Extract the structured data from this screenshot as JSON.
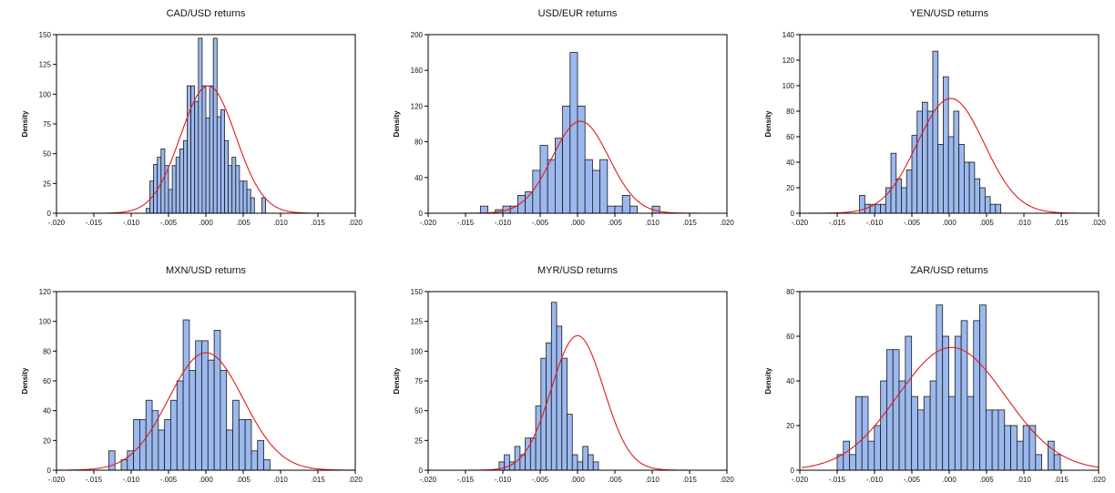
{
  "chart_data": [
    {
      "type": "bar",
      "title": "CAD/USD returns",
      "ylabel": "Density",
      "xlim": [
        -0.02,
        0.02
      ],
      "ylim": [
        0,
        150
      ],
      "xticks": [
        "-.020",
        "-.015",
        "-.010",
        "-.005",
        ".000",
        ".005",
        ".010",
        ".015",
        ".020"
      ],
      "yticks": [
        "0",
        "25",
        "50",
        "75",
        "100",
        "125",
        "150"
      ],
      "bin_width": 0.0005,
      "bin_start": -0.008,
      "values": [
        4,
        27,
        41,
        47,
        54,
        40,
        20,
        40,
        47,
        54,
        61,
        107,
        107,
        94,
        147,
        107,
        80,
        107,
        147,
        81,
        87,
        61,
        40,
        47,
        40,
        27,
        27,
        20,
        13,
        0,
        0,
        13
      ],
      "normal_curve": {
        "mean": 0.0003,
        "sd": 0.0037,
        "peak": 107
      }
    },
    {
      "type": "bar",
      "title": "USD/EUR returns",
      "ylabel": "Density",
      "xlim": [
        -0.02,
        0.02
      ],
      "ylim": [
        0,
        200
      ],
      "xticks": [
        "-.020",
        "-.015",
        "-.010",
        "-.005",
        ".000",
        ".005",
        ".010",
        ".015",
        ".020"
      ],
      "yticks": [
        "0",
        "40",
        "80",
        "120",
        "160",
        "200"
      ],
      "bin_width": 0.001,
      "bin_start": -0.013,
      "values": [
        8,
        0,
        4,
        8,
        8,
        20,
        24,
        48,
        76,
        60,
        84,
        120,
        180,
        120,
        60,
        48,
        60,
        8,
        8,
        20,
        8,
        0,
        0,
        8
      ],
      "normal_curve": {
        "mean": 0.0004,
        "sd": 0.0038,
        "peak": 103
      }
    },
    {
      "type": "bar",
      "title": "YEN/USD returns",
      "ylabel": "Density",
      "xlim": [
        -0.02,
        0.02
      ],
      "ylim": [
        0,
        140
      ],
      "xticks": [
        "-.020",
        "-.015",
        "-.010",
        "-.005",
        ".000",
        ".005",
        ".010",
        ".015",
        ".020"
      ],
      "yticks": [
        "0",
        "20",
        "40",
        "60",
        "80",
        "100",
        "120",
        "140"
      ],
      "bin_width": 0.0007,
      "bin_start": -0.012,
      "values": [
        14,
        7,
        7,
        7,
        7,
        20,
        47,
        27,
        20,
        34,
        61,
        80,
        87,
        80,
        127,
        54,
        107,
        60,
        80,
        54,
        40,
        40,
        27,
        20,
        13,
        7,
        7
      ],
      "normal_curve": {
        "mean": 0.0002,
        "sd": 0.0045,
        "peak": 90
      }
    },
    {
      "type": "bar",
      "title": "MXN/USD returns",
      "ylabel": "Density",
      "xlim": [
        -0.02,
        0.02
      ],
      "ylim": [
        0,
        120
      ],
      "xticks": [
        "-.020",
        "-.015",
        "-.010",
        "-.005",
        ".000",
        ".005",
        ".010",
        ".015",
        ".020"
      ],
      "yticks": [
        "0",
        "20",
        "40",
        "60",
        "80",
        "100",
        "120"
      ],
      "bin_width": 0.00083,
      "bin_start": -0.013,
      "values": [
        13,
        0,
        7,
        13,
        34,
        34,
        47,
        40,
        27,
        34,
        47,
        60,
        101,
        67,
        87,
        87,
        74,
        94,
        67,
        27,
        47,
        34,
        34,
        13,
        20,
        7
      ],
      "normal_curve": {
        "mean": 0.0,
        "sd": 0.005,
        "peak": 79
      }
    },
    {
      "type": "bar",
      "title": "MYR/USD returns",
      "ylabel": "Density",
      "xlim": [
        -0.02,
        0.02
      ],
      "ylim": [
        0,
        150
      ],
      "xticks": [
        "-.020",
        "-.015",
        "-.010",
        "-.005",
        ".000",
        ".005",
        ".010",
        ".015",
        ".020"
      ],
      "yticks": [
        "0",
        "25",
        "50",
        "75",
        "100",
        "125",
        "150"
      ],
      "bin_width": 0.0007,
      "bin_start": -0.0105,
      "values": [
        7,
        13,
        7,
        20,
        13,
        27,
        27,
        54,
        94,
        107,
        141,
        121,
        94,
        47,
        13,
        7,
        20,
        13,
        7
      ],
      "normal_curve": {
        "mean": 0.0,
        "sd": 0.0035,
        "peak": 113
      }
    },
    {
      "type": "bar",
      "title": "ZAR/USD returns",
      "ylabel": "Density",
      "xlim": [
        -0.02,
        0.02
      ],
      "ylim": [
        0,
        80
      ],
      "xticks": [
        "-.020",
        "-.015",
        "-.010",
        "-.005",
        ".000",
        ".005",
        ".010",
        ".015",
        ".020"
      ],
      "yticks": [
        "0",
        "20",
        "40",
        "60",
        "80"
      ],
      "bin_width": 0.00083,
      "bin_start": -0.015,
      "values": [
        7,
        13,
        7,
        33,
        33,
        13,
        20,
        40,
        54,
        54,
        40,
        60,
        33,
        27,
        33,
        40,
        74,
        60,
        33,
        60,
        67,
        33,
        67,
        74,
        27,
        27,
        27,
        20,
        20,
        13,
        20,
        20,
        7,
        0,
        13,
        7
      ],
      "normal_curve": {
        "mean": 0.0003,
        "sd": 0.0072,
        "peak": 55
      }
    }
  ]
}
